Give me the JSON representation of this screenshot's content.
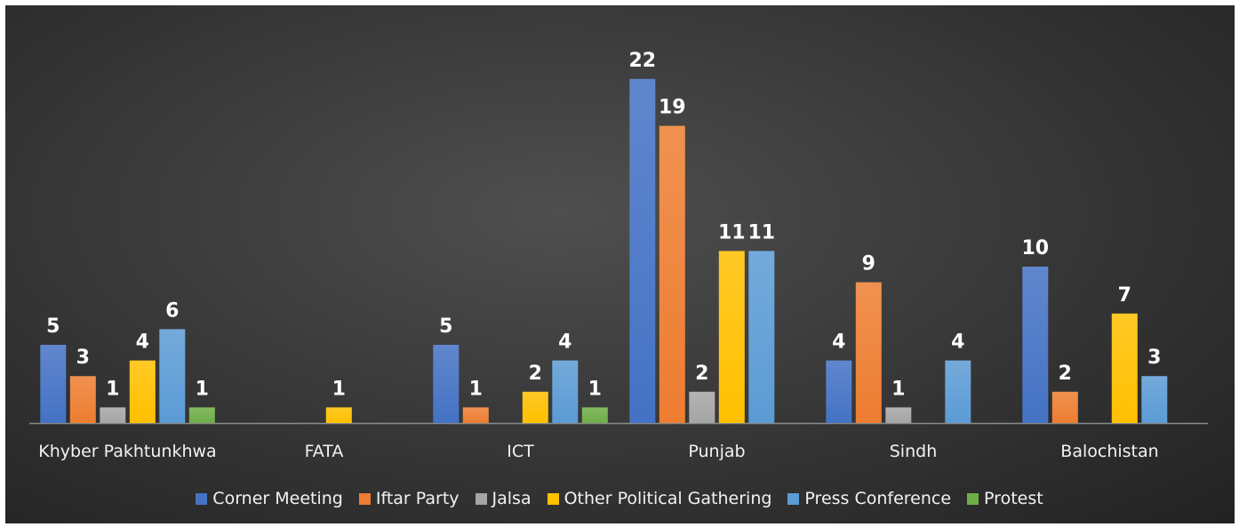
{
  "chart_data": {
    "type": "bar",
    "categories": [
      "Khyber Pakhtunkhwa",
      "FATA",
      "ICT",
      "Punjab",
      "Sindh",
      "Balochistan"
    ],
    "series": [
      {
        "name": "Corner Meeting",
        "color": "#4472C4",
        "values": [
          5,
          null,
          5,
          22,
          4,
          10
        ]
      },
      {
        "name": "Iftar Party",
        "color": "#ED7D31",
        "values": [
          3,
          null,
          1,
          19,
          9,
          2
        ]
      },
      {
        "name": "Jalsa",
        "color": "#A5A5A5",
        "values": [
          1,
          null,
          null,
          2,
          1,
          null
        ]
      },
      {
        "name": "Other Political Gathering",
        "color": "#FFC000",
        "values": [
          4,
          1,
          2,
          11,
          null,
          7
        ]
      },
      {
        "name": "Press Conference",
        "color": "#5B9BD5",
        "values": [
          6,
          null,
          4,
          11,
          4,
          3
        ]
      },
      {
        "name": "Protest",
        "color": "#70AD47",
        "values": [
          1,
          null,
          1,
          null,
          null,
          null
        ]
      }
    ],
    "ylim": [
      0,
      24
    ],
    "grid": false,
    "legend_position": "bottom",
    "data_labels": true
  }
}
